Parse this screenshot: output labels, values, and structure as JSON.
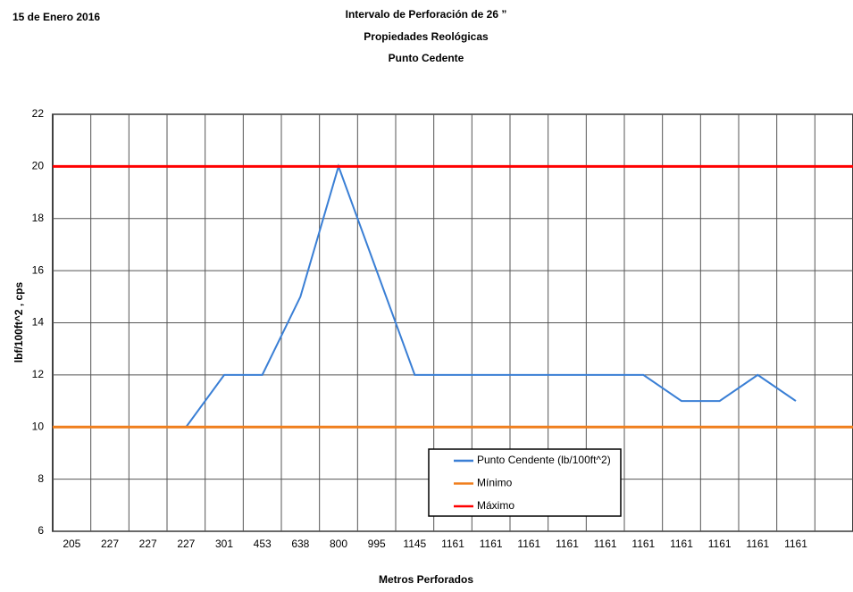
{
  "date": "15  de  Enero  2016",
  "chart_data": {
    "type": "line",
    "title": [
      "Intervalo de Perforación de 26 ”",
      "Propiedades Reológicas",
      "Punto Cedente"
    ],
    "xlabel": "Metros Perforados",
    "ylabel": "lbf/100ft^2 , cps",
    "categories": [
      "205",
      "227",
      "227",
      "227",
      "301",
      "453",
      "638",
      "800",
      "995",
      "1145",
      "1161",
      "1161",
      "1161",
      "1161",
      "1161",
      "1161",
      "1161",
      "1161",
      "1161",
      "1161"
    ],
    "ylim": [
      6,
      22
    ],
    "yticks": [
      6,
      8,
      10,
      12,
      14,
      16,
      18,
      20,
      22
    ],
    "grid": true,
    "series": [
      {
        "name": "Punto Cendente (lb/100ft^2)",
        "color": "#3a7fd5",
        "values": [
          10,
          10,
          10,
          10,
          12,
          12,
          15,
          20,
          16,
          12,
          12,
          12,
          12,
          12,
          12,
          12,
          11,
          11,
          12,
          11
        ]
      },
      {
        "name": "Mínimo",
        "color": "#f07f1d",
        "value": 10
      },
      {
        "name": "Máximo",
        "color": "#ff0000",
        "value": 20
      }
    ]
  }
}
